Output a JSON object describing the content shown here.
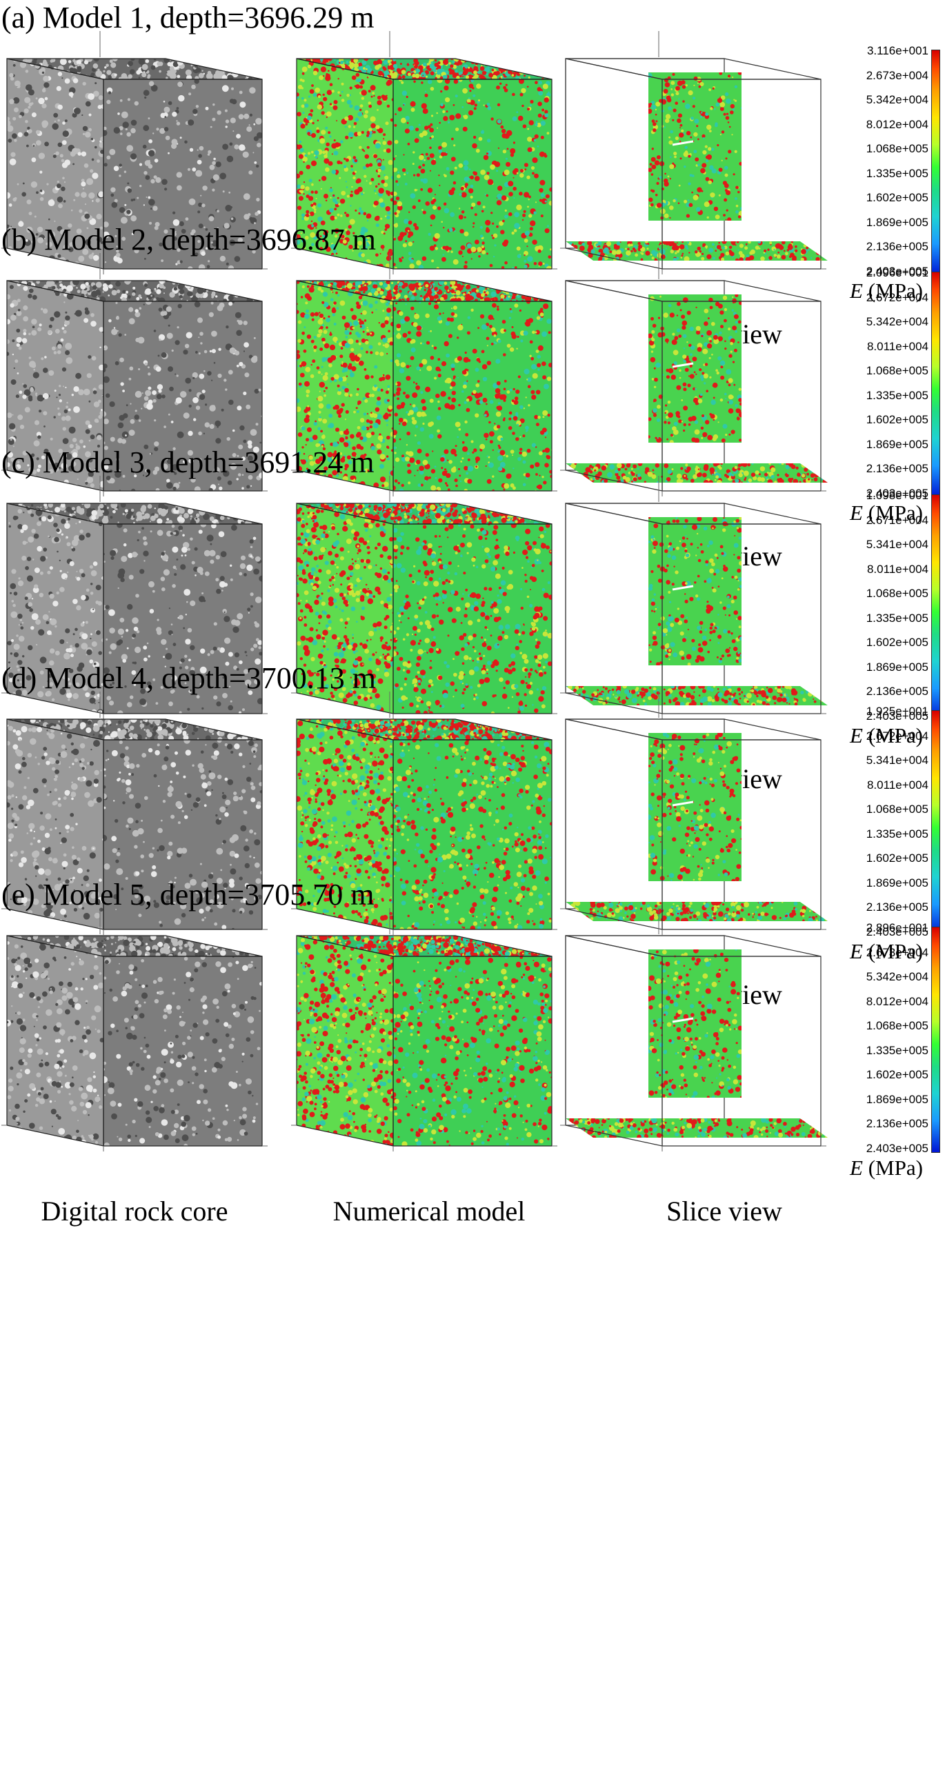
{
  "figure": {
    "panels": [
      {
        "title": "(a) Model 1, depth=3696.29 m",
        "captions": [
          "Digital rock core",
          "Numerical model",
          "Slice view"
        ],
        "colorbar": {
          "labels": [
            "3.116e+001",
            "2.673e+004",
            "5.342e+004",
            "8.012e+004",
            "1.068e+005",
            "1.335e+005",
            "1.602e+005",
            "1.869e+005",
            "2.136e+005",
            "2.403e+005"
          ],
          "unit_symbol": "E",
          "unit": "(MPa)"
        }
      },
      {
        "title": "(b) Model 2, depth=3696.87 m",
        "captions": [
          "Digital rock core",
          "Numerical model",
          "Slice view"
        ],
        "colorbar": {
          "labels": [
            "2.096e+001",
            "2.672e+004",
            "5.342e+004",
            "8.011e+004",
            "1.068e+005",
            "1.335e+005",
            "1.602e+005",
            "1.869e+005",
            "2.136e+005",
            "2.403e+005"
          ],
          "unit_symbol": "E",
          "unit": "(MPa)"
        }
      },
      {
        "title": "(c) Model 3, depth=3691.24 m",
        "captions": [
          "Digital rock core",
          "Numerical model",
          "Slice view"
        ],
        "colorbar": {
          "labels": [
            "1.098e+001",
            "2.671e+004",
            "5.341e+004",
            "8.011e+004",
            "1.068e+005",
            "1.335e+005",
            "1.602e+005",
            "1.869e+005",
            "2.136e+005",
            "2.403e+005"
          ],
          "unit_symbol": "E",
          "unit": "(MPa)"
        }
      },
      {
        "title": "(d) Model 4, depth=3700.13 m",
        "captions": [
          "Digital rock core",
          "Numerical model",
          "Slice view"
        ],
        "colorbar": {
          "labels": [
            "1.925e+001",
            "2.672e+004",
            "5.341e+004",
            "8.011e+004",
            "1.068e+005",
            "1.335e+005",
            "1.602e+005",
            "1.869e+005",
            "2.136e+005",
            "2.403e+005"
          ],
          "unit_symbol": "E",
          "unit": "(MPa)"
        }
      },
      {
        "title": "(e) Model 5, depth=3705.70 m",
        "captions": [
          "Digital rock core",
          "Numerical model",
          "Slice view"
        ],
        "colorbar": {
          "labels": [
            "2.896e+001",
            "2.673e+004",
            "5.342e+004",
            "8.012e+004",
            "1.068e+005",
            "1.335e+005",
            "1.602e+005",
            "1.869e+005",
            "2.136e+005",
            "2.403e+005"
          ],
          "unit_symbol": "E",
          "unit": "(MPa)"
        }
      }
    ]
  },
  "colors": {
    "rock_gray": "#8a8a8a",
    "model_green": "#4fd64f",
    "inclusion_red": "#e01a1a",
    "colorbar_top": "#d70000",
    "colorbar_bottom": "#0014d4"
  }
}
